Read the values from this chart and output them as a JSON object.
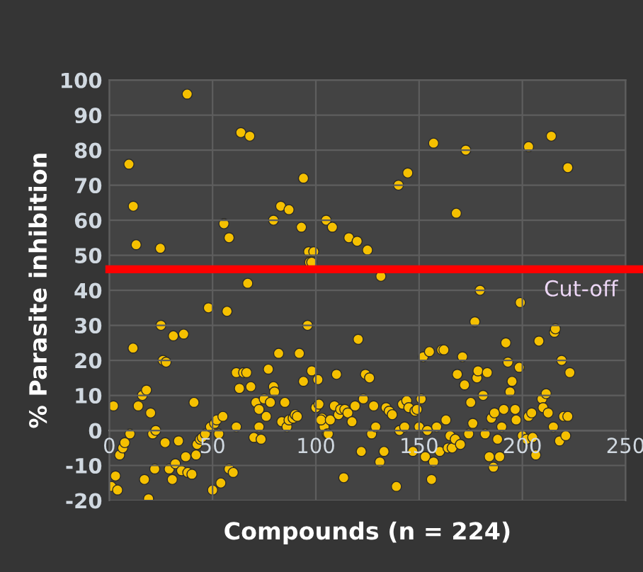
{
  "chart_data": {
    "type": "scatter",
    "xlabel": "Compounds (n = 224)",
    "ylabel": "% Parasite inhibition",
    "series": [
      {
        "color": "#f5c000",
        "x": [
          9.5,
          11.6,
          13,
          24.7,
          37.7,
          63.7,
          68,
          55.5,
          58,
          67,
          79.5,
          83,
          87,
          94,
          93,
          96.5,
          97,
          105,
          108,
          116,
          120,
          125,
          99,
          98,
          131.5,
          140,
          144.5,
          157,
          172.6,
          168,
          203,
          214,
          222,
          179.5,
          199,
          177,
          2,
          1,
          3,
          4,
          5,
          6.5,
          7.5,
          10,
          11.5,
          14,
          16,
          18,
          20,
          17,
          19,
          21,
          22.5,
          22,
          25,
          26,
          27.5,
          27,
          29,
          30.5,
          31,
          32,
          33.5,
          35,
          36,
          37,
          38,
          40,
          41,
          42,
          42.5,
          44,
          45,
          46.5,
          48,
          49,
          50,
          51,
          52,
          53,
          54,
          55,
          57,
          58,
          60,
          61.5,
          61.5,
          63,
          65,
          66.5,
          68.5,
          70,
          71,
          72.5,
          72.5,
          73.5,
          75,
          76,
          77,
          78,
          79.5,
          80,
          82,
          83.5,
          85,
          86,
          87,
          89,
          90,
          91,
          92,
          94,
          96,
          98,
          100,
          101,
          101.5,
          103,
          104,
          105.5,
          109,
          110,
          102.5,
          106,
          107,
          111,
          112,
          113.5,
          114,
          115.5,
          117.5,
          119,
          120.5,
          122,
          123,
          124,
          126,
          127,
          128,
          129,
          131,
          133,
          134,
          135.5,
          137,
          139,
          140.5,
          142,
          143,
          144,
          145,
          147,
          148,
          149,
          150,
          151,
          152,
          153,
          154,
          155,
          156,
          157,
          158.5,
          160,
          161,
          162,
          163,
          164,
          165,
          166,
          167.5,
          168.5,
          170,
          171,
          172,
          174,
          175,
          176,
          178,
          178.5,
          181,
          182,
          183,
          184,
          185,
          186,
          186.5,
          188,
          189,
          190,
          191,
          192,
          193,
          194,
          195,
          196.5,
          197,
          198.5,
          200,
          202,
          203,
          204.5,
          205,
          206.5,
          208,
          209.5,
          210,
          211.5,
          212.5,
          215,
          215.5,
          216,
          218,
          219,
          220,
          221,
          222,
          223
        ],
        "values": [
          76,
          64,
          53,
          52,
          96,
          85,
          84,
          59,
          55,
          42,
          60,
          64,
          63,
          72,
          58,
          51,
          48,
          60,
          58,
          55,
          54,
          51.5,
          51,
          48,
          44,
          70,
          73.5,
          82,
          80,
          62,
          81,
          84,
          75,
          40,
          36.5,
          31,
          7,
          -16,
          -13,
          -17,
          -7,
          -5,
          -3.5,
          -1,
          23.5,
          7,
          10,
          11.5,
          5,
          -14,
          -19.5,
          -1,
          0,
          -11,
          30,
          20,
          19.5,
          -3.5,
          -11,
          -14,
          27,
          -9.5,
          -3,
          -11.5,
          27.5,
          -7.5,
          -12,
          -12.5,
          8,
          -7,
          -4,
          -2.5,
          -2,
          -1,
          35,
          1,
          -17,
          2,
          3,
          -1,
          -15,
          4,
          34,
          -11,
          -12,
          16.5,
          1,
          12,
          16.5,
          16.5,
          12.5,
          -2,
          8,
          6,
          1,
          -2.5,
          9,
          4,
          17.5,
          8,
          12.5,
          11,
          22,
          2.5,
          8,
          1,
          3,
          3.5,
          4.5,
          4,
          22,
          14,
          30,
          17,
          6.5,
          14.5,
          7.5,
          3.5,
          1,
          -1,
          7,
          16,
          3,
          -1,
          3,
          4.5,
          6,
          -13.5,
          6,
          5,
          2.5,
          7,
          26,
          -6,
          9,
          16,
          15,
          -1,
          7,
          1,
          -9,
          -6,
          6.5,
          5.5,
          4.5,
          -16,
          0,
          7.5,
          1,
          8.5,
          6.5,
          -6,
          5.5,
          6,
          1,
          9,
          21,
          -7.5,
          0,
          22.5,
          -14,
          -9,
          1,
          -6,
          23,
          23,
          3,
          -5,
          -1.5,
          -5,
          -2.5,
          16,
          -4,
          21,
          13,
          -1,
          8,
          2,
          15,
          17,
          10,
          -1,
          16.5,
          -7.5,
          3.5,
          -10.5,
          5,
          -2.5,
          -7.5,
          1,
          6,
          25,
          19.5,
          11,
          14,
          6,
          3,
          18,
          -1.5,
          -2.5,
          4,
          5,
          -2,
          -7,
          25.5,
          9,
          6.5,
          10.5,
          5,
          1,
          28,
          29,
          -3,
          20,
          4,
          -1.5,
          4,
          16.5
        ]
      }
    ],
    "xlim": [
      0,
      250
    ],
    "xticks": [
      0,
      50,
      100,
      150,
      200,
      250
    ],
    "ylim": [
      -20,
      100
    ],
    "yticks": [
      -20,
      -10,
      0,
      10,
      20,
      30,
      40,
      50,
      60,
      70,
      80,
      90,
      100
    ],
    "grid": true,
    "marker": "circle",
    "ref_lines": [
      {
        "axis": "y",
        "value": 46,
        "label": "Cut-off",
        "color": "#ff0000"
      }
    ]
  }
}
